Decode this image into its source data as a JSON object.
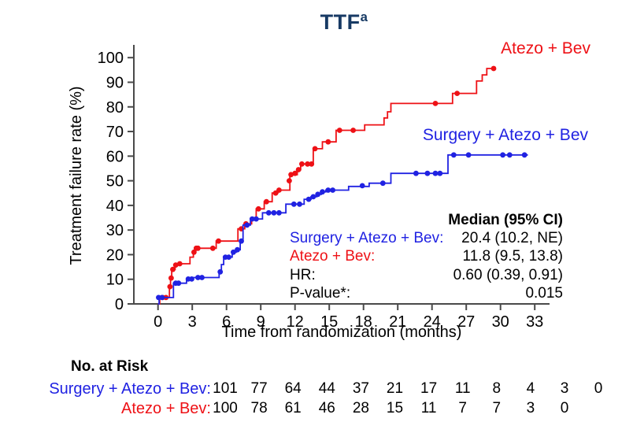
{
  "title": {
    "text": "TTF",
    "superscript": "a"
  },
  "colors": {
    "red": "#ee1116",
    "blue": "#2022e2",
    "navy": "#173a64",
    "axis": "#4a4a4a"
  },
  "chart_data": {
    "type": "line",
    "subtype": "kaplan-meier-failure-step",
    "title": "TTFa",
    "xlabel": "Time from randomization (months)",
    "ylabel": "Treatment failure rate (%)",
    "xlim": [
      0,
      35
    ],
    "ylim": [
      0,
      100
    ],
    "x_ticks": [
      0,
      3,
      6,
      9,
      12,
      15,
      18,
      21,
      24,
      27,
      30,
      33
    ],
    "y_ticks": [
      0,
      10,
      20,
      30,
      40,
      50,
      60,
      70,
      80,
      90,
      100
    ],
    "grid": false,
    "legend_position": "labels-on-plot",
    "series": [
      {
        "name": "Atezo + Bev",
        "color": "#ee1116",
        "steps": [
          [
            0,
            0
          ],
          [
            0.15,
            2.6
          ],
          [
            1.0,
            7
          ],
          [
            1.1,
            10.5
          ],
          [
            1.2,
            14
          ],
          [
            1.5,
            15.8
          ],
          [
            1.85,
            16.3
          ],
          [
            2.8,
            19
          ],
          [
            3.1,
            21
          ],
          [
            3.3,
            22.6
          ],
          [
            5.1,
            25.5
          ],
          [
            7.0,
            30.5
          ],
          [
            7.6,
            32.5
          ],
          [
            8.2,
            35
          ],
          [
            8.6,
            38.6
          ],
          [
            9.3,
            41.5
          ],
          [
            10.0,
            45
          ],
          [
            10.5,
            46.2
          ],
          [
            11.55,
            52.5
          ],
          [
            12.2,
            54.5
          ],
          [
            12.5,
            56.8
          ],
          [
            13.6,
            63
          ],
          [
            14.4,
            65.8
          ],
          [
            15.6,
            70.5
          ],
          [
            18.1,
            72.7
          ],
          [
            19.8,
            75.5
          ],
          [
            20.1,
            78
          ],
          [
            20.4,
            81.4
          ],
          [
            25.8,
            85.5
          ],
          [
            27.9,
            90.5
          ],
          [
            28.4,
            93
          ],
          [
            28.8,
            95.6
          ],
          [
            29.4,
            95.6
          ]
        ],
        "censor_marks": [
          [
            0.4,
            2.6
          ],
          [
            0.7,
            2.6
          ],
          [
            1.05,
            7
          ],
          [
            1.15,
            10.5
          ],
          [
            1.3,
            14
          ],
          [
            1.55,
            15.8
          ],
          [
            1.9,
            16.3
          ],
          [
            3.15,
            21
          ],
          [
            3.35,
            22.6
          ],
          [
            3.5,
            22.6
          ],
          [
            4.8,
            22.6
          ],
          [
            5.3,
            25.5
          ],
          [
            7.3,
            30.5
          ],
          [
            7.7,
            32.5
          ],
          [
            8.8,
            38.6
          ],
          [
            9.5,
            41.5
          ],
          [
            10.3,
            45
          ],
          [
            10.6,
            46.2
          ],
          [
            11.5,
            50
          ],
          [
            11.65,
            52.5
          ],
          [
            12.0,
            53
          ],
          [
            12.3,
            54.5
          ],
          [
            12.6,
            56.8
          ],
          [
            13.1,
            56.8
          ],
          [
            13.45,
            56.8
          ],
          [
            13.75,
            63
          ],
          [
            14.9,
            65.8
          ],
          [
            15.9,
            70.5
          ],
          [
            17.1,
            70.5
          ],
          [
            24.3,
            81.4
          ],
          [
            26.2,
            85.5
          ],
          [
            29.4,
            95.6
          ]
        ]
      },
      {
        "name": "Surgery + Atezo + Bev",
        "color": "#2022e2",
        "steps": [
          [
            0,
            0
          ],
          [
            0.1,
            2.6
          ],
          [
            1.35,
            8.4
          ],
          [
            2.5,
            10.1
          ],
          [
            3.1,
            10.7
          ],
          [
            5.35,
            13
          ],
          [
            5.55,
            16
          ],
          [
            5.75,
            19
          ],
          [
            6.5,
            21
          ],
          [
            6.85,
            22
          ],
          [
            7.2,
            25.5
          ],
          [
            7.45,
            32
          ],
          [
            8.1,
            34.5
          ],
          [
            9.15,
            37
          ],
          [
            11.2,
            40.5
          ],
          [
            12.8,
            42.5
          ],
          [
            13.4,
            43.5
          ],
          [
            13.9,
            44.5
          ],
          [
            14.3,
            45.5
          ],
          [
            14.7,
            46.2
          ],
          [
            16.7,
            47.7
          ],
          [
            18.5,
            49
          ],
          [
            20.4,
            53
          ],
          [
            25.4,
            60.5
          ],
          [
            32.4,
            60.5
          ]
        ],
        "censor_marks": [
          [
            0.05,
            2.6
          ],
          [
            0.35,
            2.6
          ],
          [
            1.55,
            8.4
          ],
          [
            1.8,
            8.4
          ],
          [
            2.65,
            10.1
          ],
          [
            2.95,
            10.1
          ],
          [
            3.5,
            10.7
          ],
          [
            3.85,
            10.7
          ],
          [
            5.45,
            13
          ],
          [
            5.9,
            19
          ],
          [
            6.2,
            19
          ],
          [
            6.6,
            21
          ],
          [
            6.95,
            22
          ],
          [
            7.3,
            25.5
          ],
          [
            7.8,
            32
          ],
          [
            8.25,
            34.5
          ],
          [
            8.6,
            34.5
          ],
          [
            9.7,
            37
          ],
          [
            10.15,
            37
          ],
          [
            10.6,
            37
          ],
          [
            11.9,
            40.5
          ],
          [
            12.4,
            40.5
          ],
          [
            13.2,
            42.5
          ],
          [
            13.6,
            43.5
          ],
          [
            14.0,
            44.5
          ],
          [
            14.4,
            45.5
          ],
          [
            14.9,
            46.2
          ],
          [
            15.3,
            46.2
          ],
          [
            17.9,
            48
          ],
          [
            19.7,
            49
          ],
          [
            22.6,
            53
          ],
          [
            23.6,
            53
          ],
          [
            24.3,
            53
          ],
          [
            24.7,
            53
          ],
          [
            25.9,
            60.5
          ],
          [
            27.2,
            60.5
          ],
          [
            30.2,
            60.5
          ],
          [
            30.8,
            60.5
          ],
          [
            32.1,
            60.5
          ]
        ]
      }
    ]
  },
  "curve_labels": {
    "red": "Atezo + Bev",
    "blue": "Surgery + Atezo + Bev"
  },
  "stats": {
    "header": "Median (95% CI)",
    "rows": [
      {
        "label": "Surgery + Atezo + Bev:",
        "value": "20.4 (10.2, NE)",
        "color": "blue"
      },
      {
        "label": "Atezo + Bev:",
        "value": "11.8 (9.5, 13.8)",
        "color": "red"
      },
      {
        "label": "HR:",
        "value": "0.60 (0.39, 0.91)",
        "color": "black"
      },
      {
        "label": "P-value*:",
        "value": "0.015",
        "color": "black"
      }
    ]
  },
  "risk_table": {
    "title": "No. at Risk",
    "rows": [
      {
        "label": "Surgery + Atezo + Bev:",
        "color": "blue",
        "counts": [
          101,
          77,
          64,
          44,
          37,
          21,
          17,
          11,
          8,
          4,
          3,
          0
        ]
      },
      {
        "label": "Atezo + Bev:",
        "color": "red",
        "counts": [
          100,
          78,
          61,
          46,
          28,
          15,
          11,
          7,
          7,
          3,
          0
        ]
      }
    ]
  }
}
